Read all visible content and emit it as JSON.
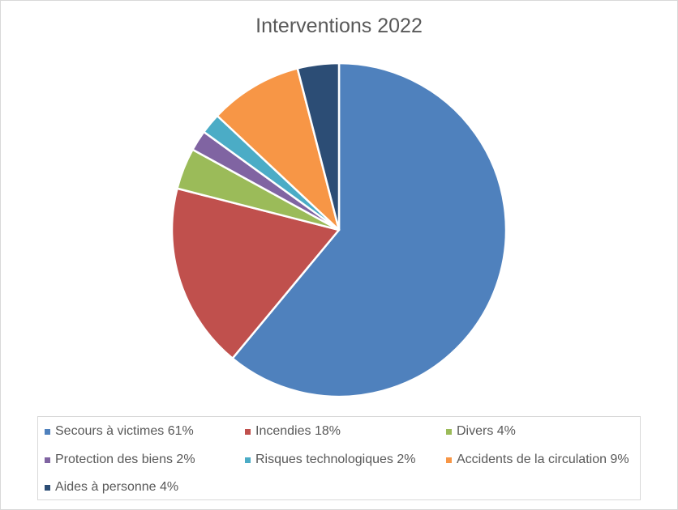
{
  "chart_data": {
    "type": "pie",
    "title": "Interventions 2022",
    "categories": [
      "Secours à victimes",
      "Incendies",
      "Divers",
      "Protection des biens",
      "Risques technologiques",
      "Accidents de la circulation",
      "Aides à personne"
    ],
    "values": [
      61,
      18,
      4,
      2,
      2,
      9,
      4
    ],
    "legend_labels": [
      "Secours à victimes 61%",
      "Incendies 18%",
      "Divers 4%",
      "Protection des biens 2%",
      "Risques technologiques 2%",
      "Accidents de la circulation 9%",
      "Aides à personne 4%"
    ],
    "colors": [
      "#4f81bd",
      "#c0504d",
      "#9bbb59",
      "#8064a2",
      "#4bacc6",
      "#f79646",
      "#2c4d75"
    ],
    "legend_position": "bottom",
    "start_angle": "12 o'clock, clockwise"
  }
}
